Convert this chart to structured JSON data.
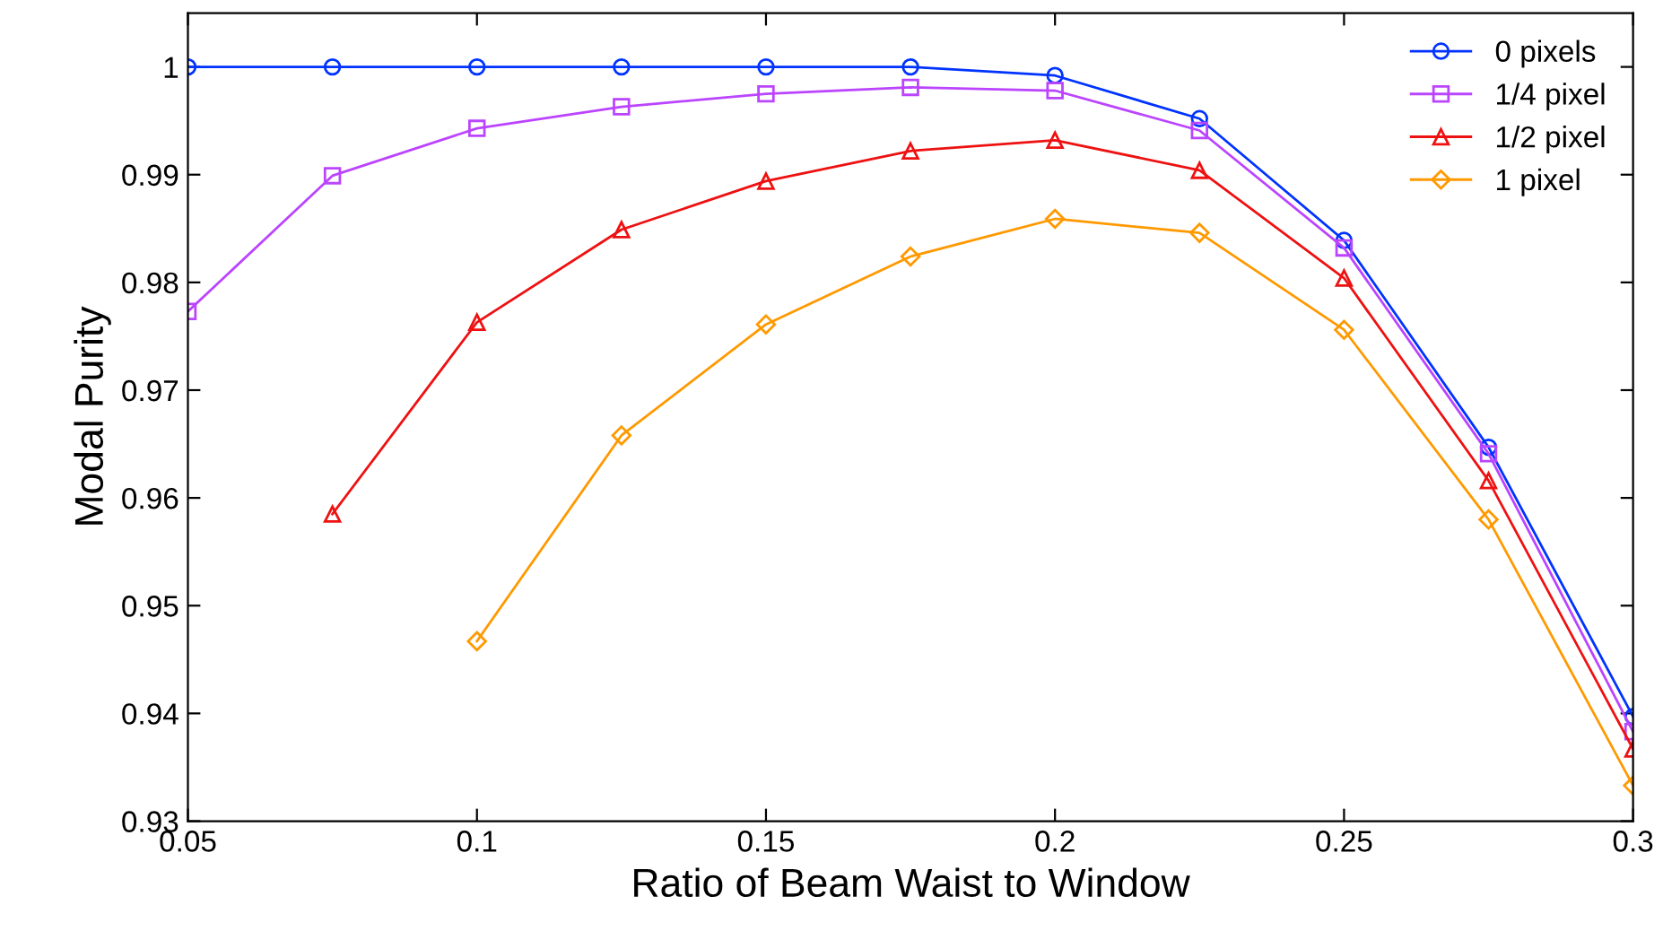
{
  "chart_data": {
    "type": "line",
    "xlabel": "Ratio of Beam Waist to Window",
    "ylabel": "Modal Purity",
    "x": [
      0.05,
      0.075,
      0.1,
      0.125,
      0.15,
      0.175,
      0.2,
      0.225,
      0.25,
      0.275,
      0.3
    ],
    "series": [
      {
        "name": "0 pixels",
        "color": "#0033ff",
        "marker": "circle",
        "values": [
          1.0,
          1.0,
          1.0,
          1.0,
          1.0,
          1.0,
          0.9992,
          0.9952,
          0.9839,
          0.9647,
          0.9397
        ]
      },
      {
        "name": "1/4 pixel",
        "color": "#bb44ff",
        "marker": "square",
        "values": [
          0.9773,
          0.9899,
          0.9943,
          0.9963,
          0.9975,
          0.9981,
          0.9978,
          0.9941,
          0.9832,
          0.9641,
          0.9383
        ]
      },
      {
        "name": "1/2 pixel",
        "color": "#ee1111",
        "marker": "triangle",
        "values": [
          null,
          0.9585,
          0.9763,
          0.9849,
          0.9894,
          0.9922,
          0.9932,
          0.9904,
          0.9804,
          0.9616,
          0.9367
        ]
      },
      {
        "name": "1 pixel",
        "color": "#ff9900",
        "marker": "diamond",
        "values": [
          null,
          null,
          0.9467,
          0.9658,
          0.9761,
          0.9824,
          0.9859,
          0.9846,
          0.9756,
          0.958,
          0.9333
        ]
      }
    ],
    "xlim": [
      0.05,
      0.3
    ],
    "xticks": [
      0.05,
      0.1,
      0.15,
      0.2,
      0.25,
      0.3
    ],
    "ylim": [
      0.93,
      1.005
    ],
    "yticks": [
      0.93,
      0.94,
      0.95,
      0.96,
      0.97,
      0.98,
      0.99,
      {
        "value": 1.0,
        "label": "1"
      }
    ],
    "legend": "top right",
    "grid": false,
    "line_style": "solid"
  }
}
